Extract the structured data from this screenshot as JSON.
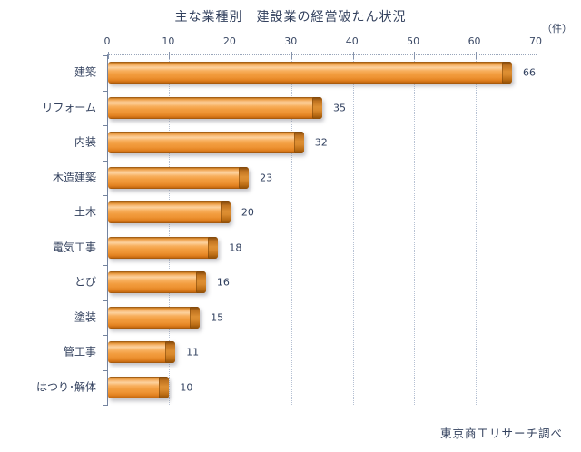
{
  "title": "主な業種別　建設業の経営破たん状況",
  "unit_label": "（件）",
  "source": "東京商工リサーチ調べ",
  "colors": {
    "text": "#33415e",
    "bar_main": "#f29c3e",
    "bar_highlight": "#fcd29e",
    "bar_cap_dark": "#8c4c06",
    "gridline": "#b6c1d3",
    "axis_line": "#7484a0"
  },
  "chart_data": {
    "type": "bar",
    "orientation": "horizontal",
    "title": "主な業種別　建設業の経営破たん状況",
    "xlabel": "（件）",
    "ylabel": "",
    "categories": [
      "建築",
      "リフォーム",
      "内装",
      "木造建築",
      "土木",
      "電気工事",
      "とび",
      "塗装",
      "管工事",
      "はつり･解体"
    ],
    "values": [
      66,
      35,
      32,
      23,
      20,
      18,
      16,
      15,
      11,
      10
    ],
    "xlim": [
      0,
      70
    ],
    "xticks": [
      0,
      10,
      20,
      30,
      40,
      50,
      60,
      70
    ],
    "grid": true,
    "legend": false,
    "value_labels": true,
    "source": "東京商工リサーチ調べ"
  }
}
